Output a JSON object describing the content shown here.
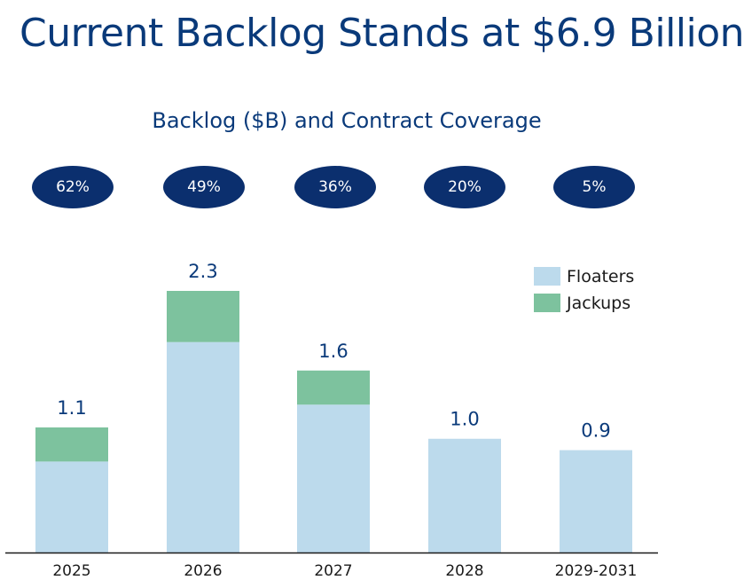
{
  "title": "Current Backlog Stands at $6.9 Billion",
  "colors": {
    "title": "#0a3a7a",
    "coverage_bg": "#0b2f6e",
    "floaters": "#bcdaec",
    "jackups": "#7dc29e",
    "axis": "#1a1a1a",
    "label": "#0a3a7a"
  },
  "coverage": {
    "values": [
      "62%",
      "49%",
      "36%",
      "20%",
      "5%"
    ]
  },
  "chart_data": {
    "type": "bar",
    "stacked": true,
    "title": "Backlog ($B) and Contract Coverage",
    "xlabel": "",
    "ylabel": "",
    "categories": [
      "2025",
      "2026",
      "2027",
      "2028",
      "2029-2031"
    ],
    "series": [
      {
        "name": "Floaters",
        "values": [
          0.8,
          1.85,
          1.3,
          1.0,
          0.9
        ]
      },
      {
        "name": "Jackups",
        "values": [
          0.3,
          0.45,
          0.3,
          0.0,
          0.0
        ]
      }
    ],
    "totals": [
      "1.1",
      "2.3",
      "1.6",
      "1.0",
      "0.9"
    ],
    "ylim": [
      0,
      2.3
    ],
    "grid": false,
    "legend": "top-right"
  }
}
